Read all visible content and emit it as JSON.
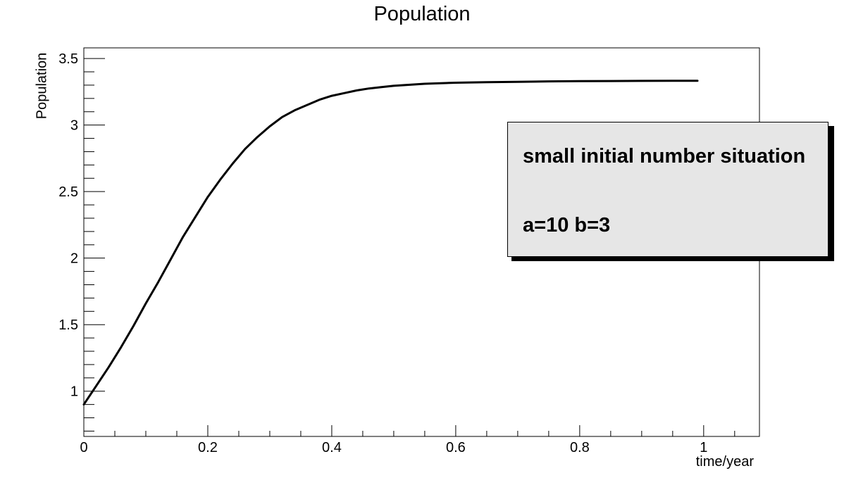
{
  "chart_data": {
    "type": "line",
    "title": "Population",
    "xlabel": "time/year",
    "ylabel": "Population",
    "xlim": [
      0,
      1.09
    ],
    "ylim": [
      0.66,
      3.58
    ],
    "xticks": [
      0,
      0.2,
      0.4,
      0.6,
      0.8,
      1
    ],
    "xtick_labels": [
      "0",
      "0.2",
      "0.4",
      "0.6",
      "0.8",
      "1"
    ],
    "yticks": [
      1,
      1.5,
      2,
      2.5,
      3,
      3.5
    ],
    "ytick_labels": [
      "1",
      "1.5",
      "2",
      "2.5",
      "3",
      "3.5"
    ],
    "series": [
      {
        "name": "Population",
        "x": [
          0,
          0.02,
          0.04,
          0.06,
          0.08,
          0.1,
          0.12,
          0.14,
          0.16,
          0.18,
          0.2,
          0.22,
          0.24,
          0.26,
          0.28,
          0.3,
          0.32,
          0.34,
          0.36,
          0.38,
          0.4,
          0.42,
          0.44,
          0.46,
          0.48,
          0.5,
          0.55,
          0.6,
          0.65,
          0.7,
          0.75,
          0.8,
          0.85,
          0.9,
          0.95,
          0.99
        ],
        "values": [
          0.9,
          1.04,
          1.18,
          1.33,
          1.49,
          1.66,
          1.82,
          1.99,
          2.16,
          2.31,
          2.46,
          2.59,
          2.71,
          2.82,
          2.91,
          2.99,
          3.06,
          3.11,
          3.15,
          3.19,
          3.22,
          3.24,
          3.26,
          3.275,
          3.285,
          3.295,
          3.31,
          3.318,
          3.322,
          3.325,
          3.328,
          3.33,
          3.331,
          3.332,
          3.333,
          3.333
        ]
      }
    ],
    "legend": {
      "position": "top-right",
      "lines": [
        "small initial number situation",
        "a=10  b=3"
      ]
    }
  }
}
